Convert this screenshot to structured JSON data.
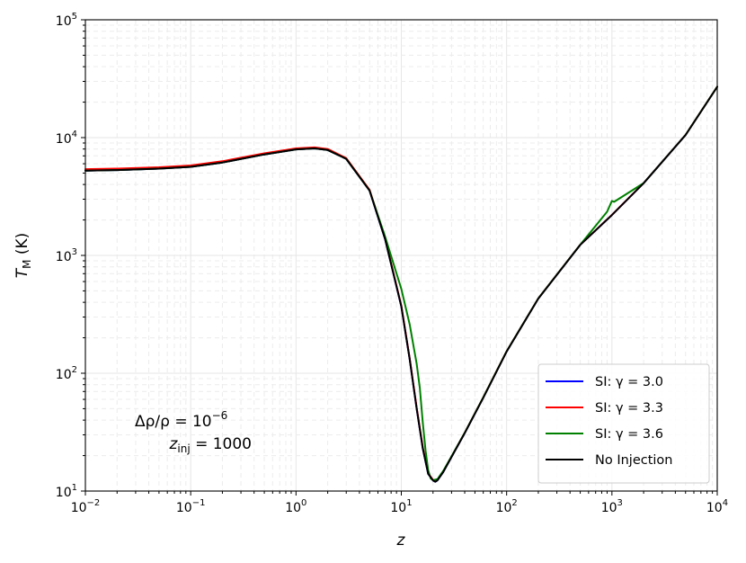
{
  "chart_data": {
    "type": "line",
    "xscale": "log",
    "yscale": "log",
    "xlim": [
      0.01,
      10000
    ],
    "ylim": [
      10,
      100000
    ],
    "grid": true,
    "legend_position": "lower-right",
    "xlabel": "z",
    "ylabel": "T_M (K)",
    "ylabel_main": "T",
    "ylabel_sub": "M",
    "ylabel_unit": " (K)",
    "xticks": [
      {
        "base": "10",
        "exp": "−2",
        "value": 0.01
      },
      {
        "base": "10",
        "exp": "−1",
        "value": 0.1
      },
      {
        "base": "10",
        "exp": "0",
        "value": 1
      },
      {
        "base": "10",
        "exp": "1",
        "value": 10
      },
      {
        "base": "10",
        "exp": "2",
        "value": 100
      },
      {
        "base": "10",
        "exp": "3",
        "value": 1000
      },
      {
        "base": "10",
        "exp": "4",
        "value": 10000
      }
    ],
    "yticks": [
      {
        "base": "10",
        "exp": "1",
        "value": 10
      },
      {
        "base": "10",
        "exp": "2",
        "value": 100
      },
      {
        "base": "10",
        "exp": "3",
        "value": 1000
      },
      {
        "base": "10",
        "exp": "4",
        "value": 10000
      },
      {
        "base": "10",
        "exp": "5",
        "value": 100000
      }
    ],
    "annotation": {
      "line1": "Δρ/ρ = 10",
      "line1_exp": "−6",
      "line2_main": "z",
      "line2_sub": "inj",
      "line2_rest": " = 1000"
    },
    "series": [
      {
        "name": "SI: γ = 3.0",
        "color": "#0000ff",
        "points": [
          [
            0.01,
            5250
          ],
          [
            0.02,
            5300
          ],
          [
            0.05,
            5450
          ],
          [
            0.1,
            5650
          ],
          [
            0.2,
            6150
          ],
          [
            0.5,
            7200
          ],
          [
            1,
            7950
          ],
          [
            1.5,
            8100
          ],
          [
            2,
            7850
          ],
          [
            3,
            6600
          ],
          [
            5,
            3550
          ],
          [
            7,
            1380
          ],
          [
            10,
            370
          ],
          [
            12,
            132
          ],
          [
            14,
            50
          ],
          [
            16,
            23
          ],
          [
            18,
            14
          ],
          [
            20,
            12.3
          ],
          [
            21,
            12
          ],
          [
            22,
            12.3
          ],
          [
            25,
            14.5
          ],
          [
            30,
            19.5
          ],
          [
            40,
            31
          ],
          [
            60,
            62
          ],
          [
            100,
            153
          ],
          [
            200,
            430
          ],
          [
            500,
            1230
          ],
          [
            1000,
            2200
          ],
          [
            2000,
            4100
          ],
          [
            5000,
            10500
          ],
          [
            10000,
            27000
          ]
        ]
      },
      {
        "name": "SI: γ = 3.3",
        "color": "#ff0000",
        "points": [
          [
            0.01,
            5400
          ],
          [
            0.02,
            5450
          ],
          [
            0.05,
            5600
          ],
          [
            0.1,
            5800
          ],
          [
            0.2,
            6300
          ],
          [
            0.5,
            7350
          ],
          [
            1,
            8100
          ],
          [
            1.5,
            8250
          ],
          [
            2,
            8000
          ],
          [
            3,
            6700
          ],
          [
            5,
            3600
          ],
          [
            7,
            1400
          ],
          [
            10,
            375
          ],
          [
            12,
            134
          ],
          [
            14,
            51
          ],
          [
            16,
            23.5
          ],
          [
            18,
            14.2
          ],
          [
            20,
            12.4
          ],
          [
            21,
            12.1
          ],
          [
            22,
            12.4
          ],
          [
            25,
            14.6
          ],
          [
            30,
            19.6
          ],
          [
            40,
            31.2
          ],
          [
            60,
            62.3
          ],
          [
            100,
            153.5
          ],
          [
            200,
            431
          ],
          [
            500,
            1232
          ],
          [
            1000,
            2205
          ],
          [
            2000,
            4110
          ],
          [
            5000,
            10520
          ],
          [
            10000,
            27050
          ]
        ]
      },
      {
        "name": "SI: γ = 3.6",
        "color": "#008000",
        "points": [
          [
            0.01,
            5250
          ],
          [
            0.02,
            5300
          ],
          [
            0.05,
            5450
          ],
          [
            0.1,
            5650
          ],
          [
            0.2,
            6150
          ],
          [
            0.5,
            7200
          ],
          [
            1,
            7950
          ],
          [
            1.5,
            8100
          ],
          [
            2,
            7850
          ],
          [
            3,
            6600
          ],
          [
            5,
            3550
          ],
          [
            7,
            1450
          ],
          [
            10,
            520
          ],
          [
            12,
            260
          ],
          [
            14,
            120
          ],
          [
            15,
            75
          ],
          [
            16,
            38
          ],
          [
            17,
            22
          ],
          [
            18,
            15
          ],
          [
            19,
            12.8
          ],
          [
            20,
            12.4
          ],
          [
            22,
            12.6
          ],
          [
            25,
            14.8
          ],
          [
            30,
            19.7
          ],
          [
            40,
            31.2
          ],
          [
            60,
            62.3
          ],
          [
            100,
            153.5
          ],
          [
            200,
            431
          ],
          [
            500,
            1232
          ],
          [
            900,
            2350
          ],
          [
            1000,
            2900
          ],
          [
            1050,
            2850
          ],
          [
            2000,
            4110
          ],
          [
            5000,
            10520
          ],
          [
            10000,
            27050
          ]
        ]
      },
      {
        "name": "No Injection",
        "color": "#000000",
        "points": [
          [
            0.01,
            5250
          ],
          [
            0.02,
            5300
          ],
          [
            0.05,
            5450
          ],
          [
            0.1,
            5650
          ],
          [
            0.2,
            6150
          ],
          [
            0.5,
            7200
          ],
          [
            1,
            7950
          ],
          [
            1.5,
            8100
          ],
          [
            2,
            7850
          ],
          [
            3,
            6600
          ],
          [
            5,
            3550
          ],
          [
            7,
            1380
          ],
          [
            10,
            370
          ],
          [
            12,
            132
          ],
          [
            14,
            50
          ],
          [
            16,
            23
          ],
          [
            18,
            14
          ],
          [
            20,
            12.3
          ],
          [
            21,
            12
          ],
          [
            22,
            12.3
          ],
          [
            25,
            14.5
          ],
          [
            30,
            19.5
          ],
          [
            40,
            31
          ],
          [
            60,
            62
          ],
          [
            100,
            153
          ],
          [
            200,
            430
          ],
          [
            500,
            1230
          ],
          [
            1000,
            2200
          ],
          [
            2000,
            4100
          ],
          [
            5000,
            10500
          ],
          [
            10000,
            27000
          ]
        ]
      }
    ]
  }
}
